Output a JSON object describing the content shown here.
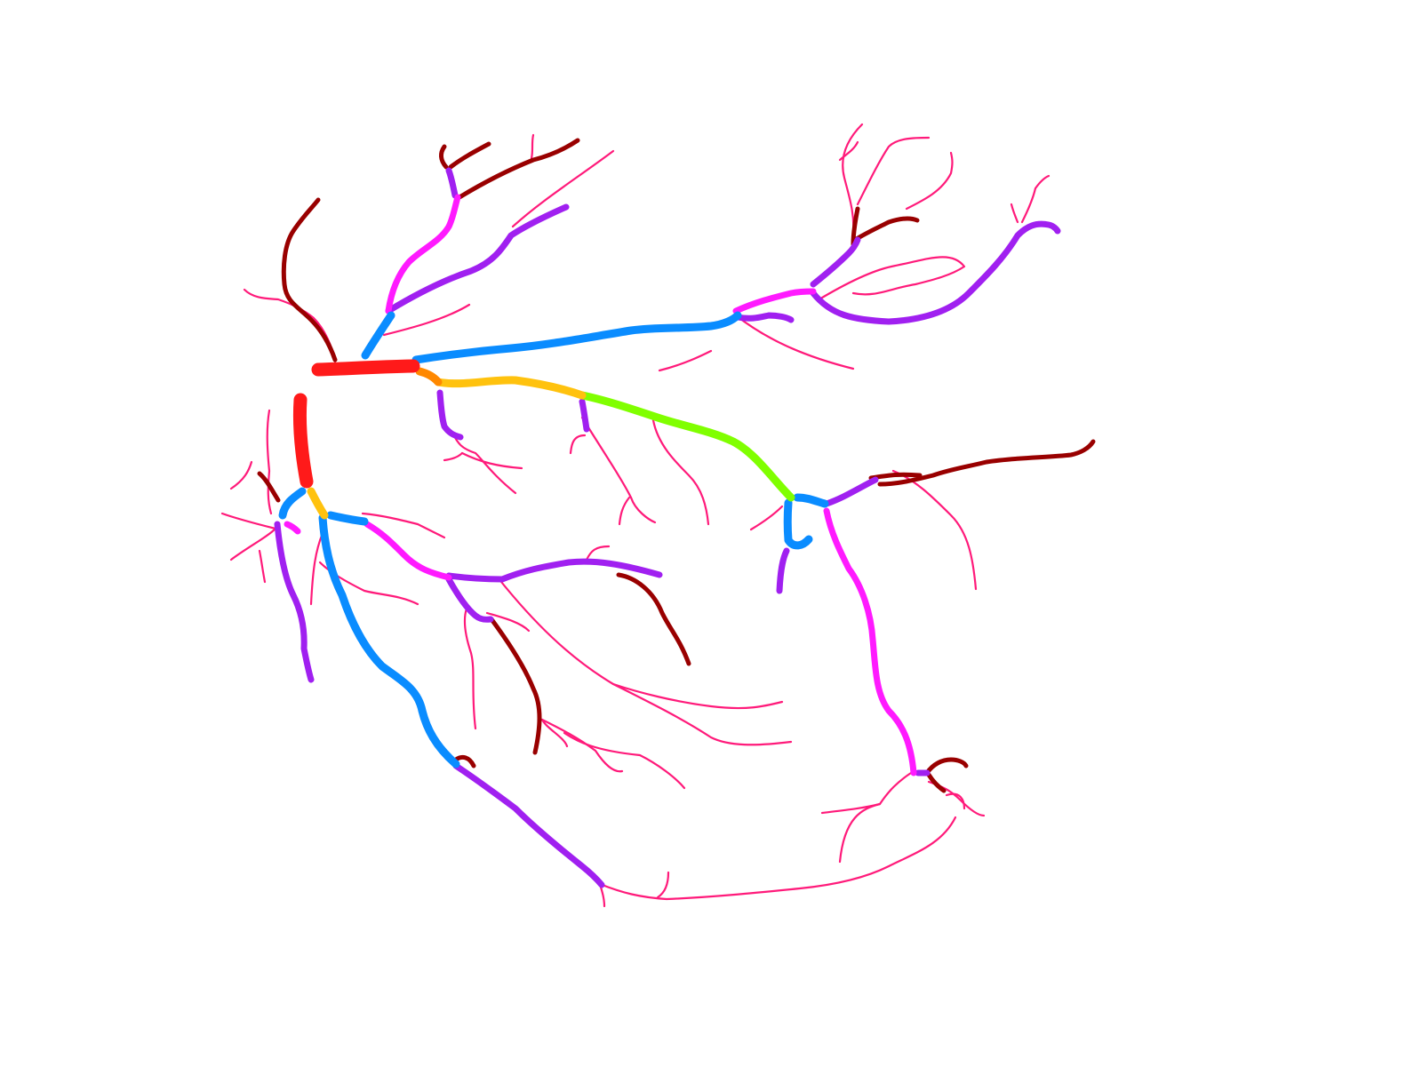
{
  "diagram": {
    "title": "",
    "labels": [],
    "legend": [],
    "colors": {
      "background": "#ffffff",
      "level_0_trunk": "#ff1a1a",
      "level_1": "#ff8800",
      "level_2": "#ffc20e",
      "level_3": "#80ff00",
      "level_4": "#0a8cff",
      "level_5": "#ff1aff",
      "level_6": "#a020f0",
      "level_7": "#990000",
      "capillary": "#ff1a7a"
    }
  }
}
